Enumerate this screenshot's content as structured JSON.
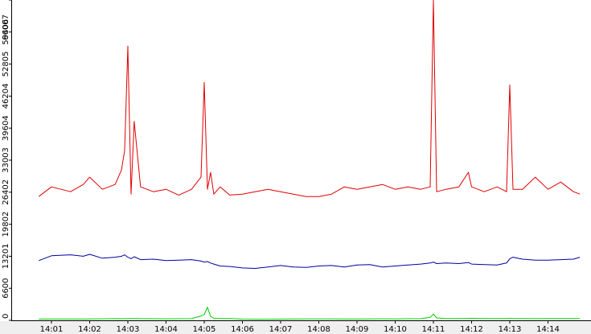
{
  "chart_data": {
    "type": "line",
    "title": "",
    "xlabel": "",
    "ylabel": "",
    "x_ticks": [
      "14:01",
      "14:02",
      "14:03",
      "14:04",
      "14:05",
      "14:06",
      "14:07",
      "14:08",
      "14:09",
      "14:10",
      "14:11",
      "14:12",
      "14:13",
      "14:14"
    ],
    "y_ticks": [
      "0",
      "6600",
      "13201",
      "19802",
      "26402",
      "33003",
      "39604",
      "46204",
      "52805",
      "59406",
      "66007"
    ],
    "xlim": [
      "14:00:36",
      "14:14:52"
    ],
    "ylim": [
      0,
      66007
    ],
    "grid": false,
    "legend": "none",
    "x": [
      "14:00:40",
      "14:01:00",
      "14:01:30",
      "14:01:50",
      "14:02:00",
      "14:02:20",
      "14:02:40",
      "14:02:50",
      "14:02:55",
      "14:03:00",
      "14:03:05",
      "14:03:10",
      "14:03:20",
      "14:03:40",
      "14:04:00",
      "14:04:20",
      "14:04:40",
      "14:04:55",
      "14:05:00",
      "14:05:05",
      "14:05:10",
      "14:05:15",
      "14:05:25",
      "14:05:40",
      "14:06:00",
      "14:06:20",
      "14:06:40",
      "14:07:00",
      "14:07:20",
      "14:07:40",
      "14:08:00",
      "14:08:20",
      "14:08:40",
      "14:09:00",
      "14:09:20",
      "14:09:40",
      "14:10:00",
      "14:10:20",
      "14:10:40",
      "14:10:55",
      "14:11:00",
      "14:11:05",
      "14:11:20",
      "14:11:40",
      "14:11:55",
      "14:12:00",
      "14:12:20",
      "14:12:40",
      "14:12:55",
      "14:13:00",
      "14:13:05",
      "14:13:20",
      "14:13:40",
      "14:14:00",
      "14:14:20",
      "14:14:40",
      "14:14:50"
    ],
    "series": [
      {
        "color": "#e00000",
        "values": [
          25500,
          27500,
          26500,
          28000,
          29500,
          27000,
          28000,
          31000,
          35000,
          56500,
          26000,
          41000,
          27500,
          26500,
          27000,
          25800,
          27000,
          29500,
          49000,
          27000,
          30500,
          26000,
          27500,
          25800,
          26000,
          26500,
          27000,
          26500,
          26000,
          25500,
          25500,
          26000,
          27500,
          27000,
          27500,
          28000,
          27000,
          27500,
          27000,
          27500,
          66007,
          26500,
          27000,
          27500,
          30500,
          27500,
          26500,
          27500,
          26500,
          48500,
          27000,
          27000,
          29500,
          27000,
          28500,
          26500,
          26000
        ]
      },
      {
        "color": "#0000a0",
        "values": [
          12300,
          13300,
          13500,
          13200,
          13600,
          12800,
          13000,
          13200,
          13500,
          13000,
          12700,
          13100,
          12500,
          12600,
          12300,
          12400,
          12500,
          12200,
          12000,
          12100,
          11800,
          11600,
          11200,
          11100,
          10800,
          10700,
          11000,
          11300,
          11000,
          10900,
          11200,
          11300,
          11000,
          11400,
          11500,
          11000,
          11200,
          11400,
          11600,
          11800,
          12000,
          11700,
          11800,
          11700,
          11900,
          11600,
          11500,
          11400,
          11800,
          12700,
          13000,
          12600,
          12400,
          12400,
          12500,
          12600,
          13000
        ]
      },
      {
        "color": "#00cc00",
        "values": [
          250,
          260,
          270,
          270,
          300,
          320,
          340,
          330,
          340,
          350,
          380,
          360,
          340,
          330,
          320,
          330,
          340,
          900,
          1200,
          2700,
          800,
          420,
          380,
          360,
          250,
          240,
          230,
          250,
          260,
          300,
          300,
          280,
          260,
          270,
          300,
          320,
          300,
          330,
          350,
          600,
          1300,
          500,
          380,
          360,
          400,
          420,
          380,
          380,
          360,
          400,
          380,
          380,
          350,
          370,
          380,
          380,
          360
        ]
      }
    ]
  }
}
